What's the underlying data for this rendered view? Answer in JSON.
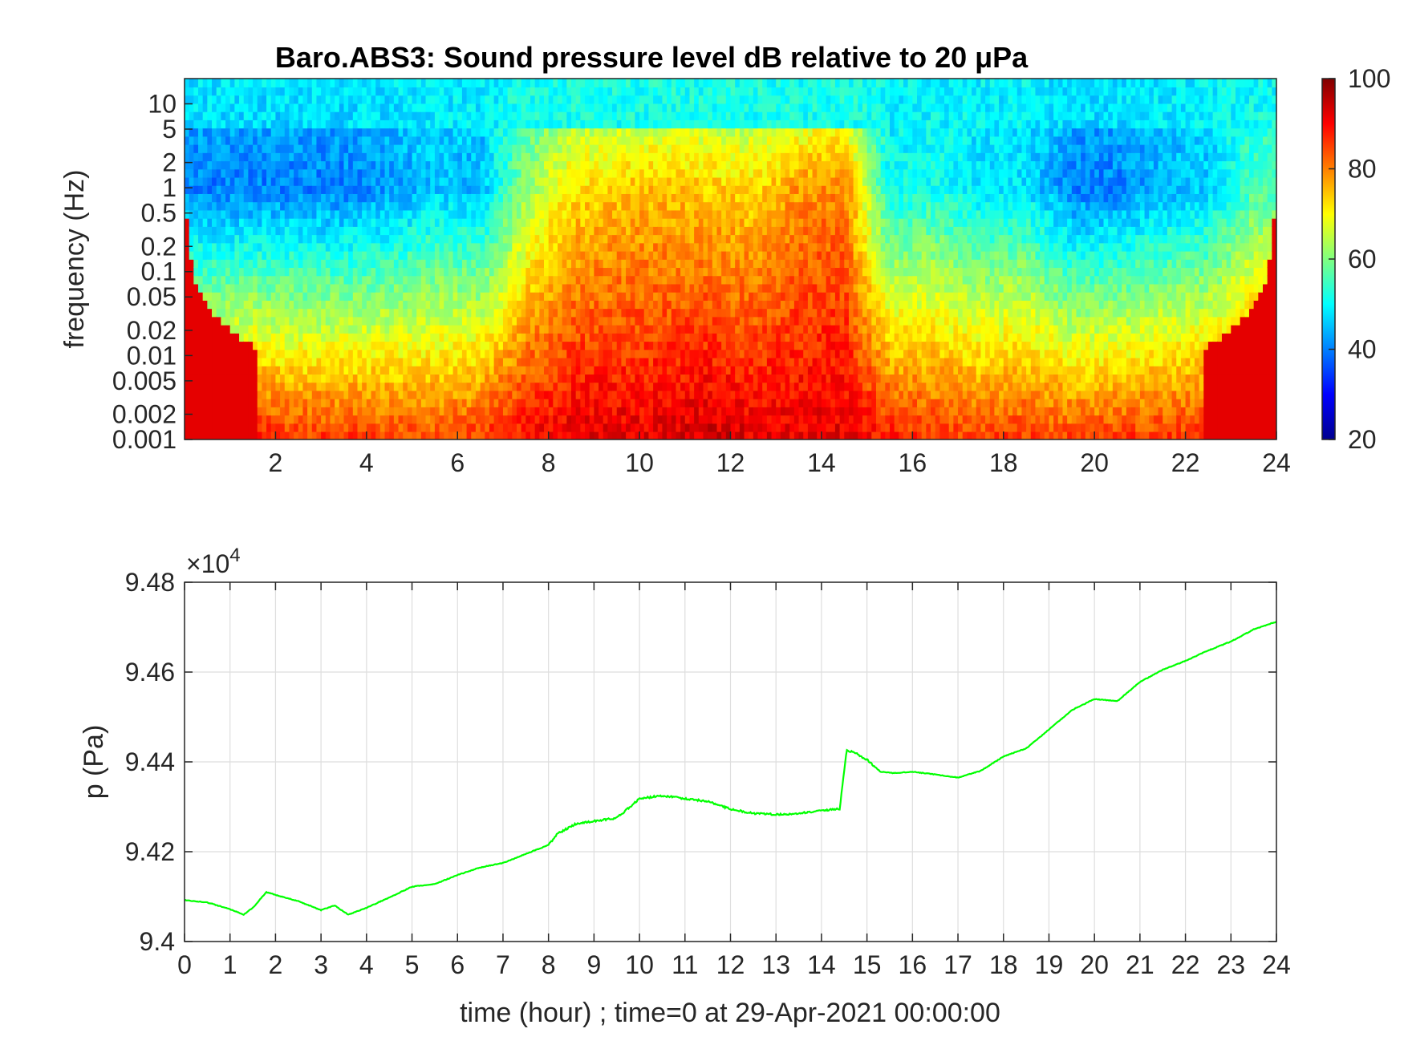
{
  "chart_data": [
    {
      "type": "heatmap",
      "title": "Baro.ABS3: Sound pressure level dB relative to 20 μPa",
      "ylabel": "frequency (Hz)",
      "xlabel": "",
      "xlim": [
        0,
        24
      ],
      "ylim": [
        0.001,
        20
      ],
      "yscale": "log",
      "x_ticks": [
        "2",
        "4",
        "6",
        "8",
        "10",
        "12",
        "14",
        "16",
        "18",
        "20",
        "22",
        "24"
      ],
      "y_ticks": [
        "0.001",
        "0.002",
        "0.005",
        "0.01",
        "0.02",
        "0.05",
        "0.1",
        "0.2",
        "0.5",
        "1",
        "2",
        "5",
        "10"
      ],
      "colorbar": {
        "range": [
          20,
          100
        ],
        "ticks": [
          "20",
          "40",
          "60",
          "80",
          "100"
        ],
        "colormap": "jet"
      },
      "time_hours": [
        0.5,
        1.5,
        2.5,
        3.5,
        4.5,
        5.5,
        6.5,
        7.5,
        8.5,
        9.5,
        10.5,
        11.5,
        12.5,
        13.5,
        14.5,
        15.5,
        16.5,
        17.5,
        18.5,
        19.5,
        20.5,
        21.5,
        22.5,
        23.5
      ],
      "level_db_at_1hz": [
        40,
        40,
        40,
        40,
        42,
        46,
        44,
        62,
        72,
        74,
        75,
        74,
        73,
        78,
        80,
        50,
        52,
        48,
        48,
        40,
        40,
        44,
        46,
        56
      ],
      "level_db_at_0_001hz": [
        86,
        88,
        86,
        86,
        85,
        84,
        86,
        90,
        92,
        92,
        92,
        94,
        92,
        92,
        92,
        88,
        86,
        85,
        86,
        85,
        86,
        86,
        86,
        90
      ],
      "grid": false
    },
    {
      "type": "line",
      "xlabel": "time (hour) ; time=0 at 29-Apr-2021 00:00:00",
      "ylabel": "p (Pa)",
      "exponent_label": "×10",
      "exponent_power": "4",
      "xlim": [
        0,
        24
      ],
      "ylim": [
        9.4,
        9.48
      ],
      "x_ticks": [
        "0",
        "1",
        "2",
        "3",
        "4",
        "5",
        "6",
        "7",
        "8",
        "9",
        "10",
        "11",
        "12",
        "13",
        "14",
        "15",
        "16",
        "17",
        "18",
        "19",
        "20",
        "21",
        "22",
        "23",
        "24"
      ],
      "y_ticks": [
        "9.4",
        "9.42",
        "9.44",
        "9.46",
        "9.48"
      ],
      "grid": true,
      "series": [
        {
          "color": "#00ff00",
          "x": [
            0,
            0.5,
            1,
            1.3,
            1.5,
            1.8,
            2.2,
            2.5,
            3.0,
            3.3,
            3.6,
            4.0,
            4.5,
            5.0,
            5.5,
            6.0,
            6.5,
            7.0,
            7.5,
            8.0,
            8.2,
            8.6,
            9.0,
            9.5,
            10.0,
            10.5,
            11.0,
            11.5,
            12.0,
            12.5,
            13.0,
            13.5,
            14.0,
            14.4,
            14.55,
            14.7,
            15.0,
            15.3,
            15.6,
            16.0,
            16.5,
            17.0,
            17.5,
            18.0,
            18.5,
            19.0,
            19.5,
            20.0,
            20.5,
            21.0,
            21.5,
            22.0,
            22.5,
            23.0,
            23.5,
            24.0
          ],
          "y": [
            9.4092,
            9.4087,
            9.4072,
            9.406,
            9.4075,
            9.411,
            9.4098,
            9.409,
            9.407,
            9.408,
            9.406,
            9.4075,
            9.4098,
            9.4122,
            9.4128,
            9.4148,
            9.4165,
            9.4175,
            9.4195,
            9.4215,
            9.424,
            9.4262,
            9.4268,
            9.4275,
            9.4318,
            9.4325,
            9.4318,
            9.4312,
            9.4295,
            9.4285,
            9.4283,
            9.4285,
            9.4292,
            9.4295,
            9.4425,
            9.4422,
            9.4405,
            9.4378,
            9.4375,
            9.4378,
            9.4372,
            9.4365,
            9.438,
            9.4412,
            9.443,
            9.4472,
            9.4515,
            9.454,
            9.4535,
            9.4578,
            9.4605,
            9.4625,
            9.4648,
            9.4668,
            9.4695,
            9.4712
          ]
        }
      ]
    }
  ]
}
